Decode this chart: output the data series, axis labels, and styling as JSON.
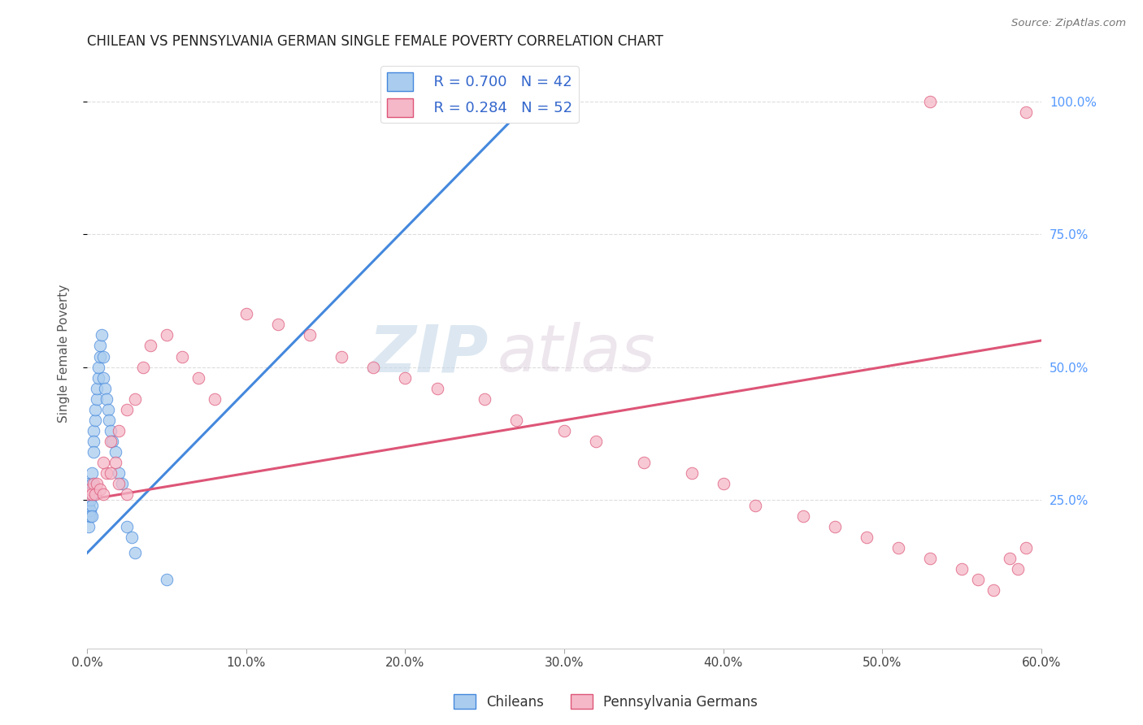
{
  "title": "CHILEAN VS PENNSYLVANIA GERMAN SINGLE FEMALE POVERTY CORRELATION CHART",
  "source": "Source: ZipAtlas.com",
  "ylabel": "Single Female Poverty",
  "xlim": [
    0.0,
    0.6
  ],
  "ylim": [
    -0.03,
    1.08
  ],
  "xtick_labels": [
    "0.0%",
    "10.0%",
    "20.0%",
    "30.0%",
    "40.0%",
    "50.0%",
    "60.0%"
  ],
  "xtick_vals": [
    0.0,
    0.1,
    0.2,
    0.3,
    0.4,
    0.5,
    0.6
  ],
  "ytick_right_labels": [
    "100.0%",
    "75.0%",
    "50.0%",
    "25.0%"
  ],
  "ytick_right_vals": [
    1.0,
    0.75,
    0.5,
    0.25
  ],
  "grid_color": "#dddddd",
  "background_color": "#ffffff",
  "chileans_color": "#aaccee",
  "pa_german_color": "#f5b8c8",
  "blue_line_color": "#4488dd",
  "pink_line_color": "#dd5577",
  "legend_R1": "R = 0.700",
  "legend_N1": "N = 42",
  "legend_R2": "R = 0.284",
  "legend_N2": "N = 52",
  "legend_label1": "Chileans",
  "legend_label2": "Pennsylvania Germans",
  "watermark_zip": "ZIP",
  "watermark_atlas": "atlas",
  "watermark_color_zip": "#c5d8e8",
  "watermark_color_atlas": "#d8c8d8",
  "chileans_x": [
    0.001,
    0.001,
    0.001,
    0.001,
    0.001,
    0.002,
    0.002,
    0.002,
    0.002,
    0.003,
    0.003,
    0.003,
    0.003,
    0.003,
    0.004,
    0.004,
    0.004,
    0.005,
    0.005,
    0.006,
    0.006,
    0.007,
    0.007,
    0.008,
    0.008,
    0.009,
    0.01,
    0.01,
    0.011,
    0.012,
    0.013,
    0.014,
    0.015,
    0.016,
    0.018,
    0.02,
    0.022,
    0.025,
    0.028,
    0.03,
    0.05,
    0.28
  ],
  "chileans_y": [
    0.22,
    0.24,
    0.26,
    0.28,
    0.2,
    0.23,
    0.25,
    0.27,
    0.22,
    0.28,
    0.26,
    0.3,
    0.24,
    0.22,
    0.38,
    0.36,
    0.34,
    0.4,
    0.42,
    0.44,
    0.46,
    0.48,
    0.5,
    0.52,
    0.54,
    0.56,
    0.52,
    0.48,
    0.46,
    0.44,
    0.42,
    0.4,
    0.38,
    0.36,
    0.34,
    0.3,
    0.28,
    0.2,
    0.18,
    0.15,
    0.1,
    1.0
  ],
  "pa_german_x": [
    0.001,
    0.002,
    0.003,
    0.004,
    0.005,
    0.006,
    0.008,
    0.01,
    0.012,
    0.015,
    0.018,
    0.02,
    0.025,
    0.03,
    0.035,
    0.04,
    0.05,
    0.06,
    0.07,
    0.08,
    0.1,
    0.12,
    0.14,
    0.16,
    0.18,
    0.2,
    0.22,
    0.25,
    0.27,
    0.3,
    0.32,
    0.35,
    0.38,
    0.4,
    0.42,
    0.45,
    0.47,
    0.49,
    0.51,
    0.53,
    0.55,
    0.56,
    0.57,
    0.58,
    0.585,
    0.59,
    0.01,
    0.015,
    0.02,
    0.025,
    0.53,
    0.59
  ],
  "pa_german_y": [
    0.26,
    0.27,
    0.26,
    0.28,
    0.26,
    0.28,
    0.27,
    0.26,
    0.3,
    0.36,
    0.32,
    0.38,
    0.42,
    0.44,
    0.5,
    0.54,
    0.56,
    0.52,
    0.48,
    0.44,
    0.6,
    0.58,
    0.56,
    0.52,
    0.5,
    0.48,
    0.46,
    0.44,
    0.4,
    0.38,
    0.36,
    0.32,
    0.3,
    0.28,
    0.24,
    0.22,
    0.2,
    0.18,
    0.16,
    0.14,
    0.12,
    0.1,
    0.08,
    0.14,
    0.12,
    0.16,
    0.32,
    0.3,
    0.28,
    0.26,
    1.0,
    0.98
  ],
  "blue_line_x": [
    0.0,
    0.285
  ],
  "blue_line_y": [
    0.15,
    1.02
  ],
  "pink_line_x": [
    0.0,
    0.6
  ],
  "pink_line_y": [
    0.25,
    0.55
  ]
}
